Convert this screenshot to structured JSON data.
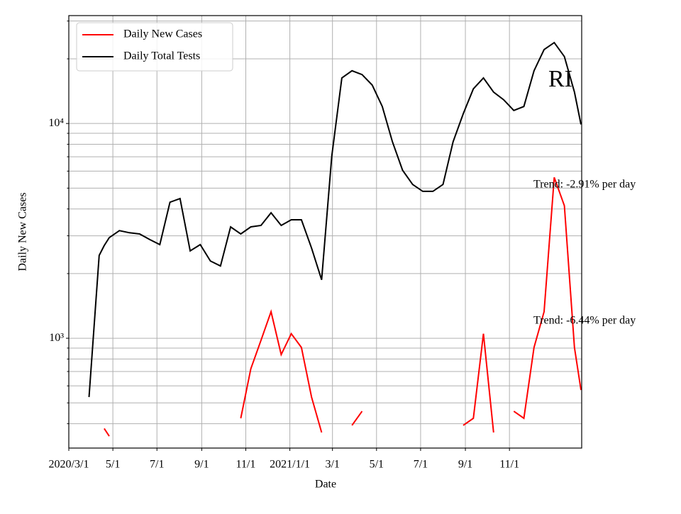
{
  "chart_data": {
    "type": "line",
    "title": "RI",
    "xlabel": "Date",
    "ylabel": "Daily New Cases",
    "yscale": "log",
    "grid": true,
    "legend": "upper left",
    "x": [
      "2020-03-01",
      "2020-03-15",
      "2020-03-29",
      "2020-04-12",
      "2020-04-19",
      "2020-04-26",
      "2020-05-10",
      "2020-05-24",
      "2020-06-07",
      "2020-06-21",
      "2020-07-05",
      "2020-07-19",
      "2020-08-02",
      "2020-08-16",
      "2020-08-30",
      "2020-09-13",
      "2020-09-27",
      "2020-10-11",
      "2020-10-25",
      "2020-11-08",
      "2020-11-22",
      "2020-12-06",
      "2020-12-20",
      "2021-01-03",
      "2021-01-17",
      "2021-01-31",
      "2021-02-14",
      "2021-02-28",
      "2021-03-14",
      "2021-03-28",
      "2021-04-11",
      "2021-04-25",
      "2021-05-09",
      "2021-05-23",
      "2021-06-06",
      "2021-06-20",
      "2021-07-04",
      "2021-07-18",
      "2021-08-01",
      "2021-08-15",
      "2021-08-29",
      "2021-09-12",
      "2021-09-26",
      "2021-10-10",
      "2021-10-24",
      "2021-11-07",
      "2021-11-21",
      "2021-12-05",
      "2021-12-19",
      "2022-01-02",
      "2022-01-16",
      "2022-01-30",
      "2022-02-08"
    ],
    "series": [
      {
        "name": "Daily New Cases",
        "color": "#ff0000",
        "values": [
          null,
          null,
          null,
          null,
          380,
          350,
          null,
          null,
          null,
          null,
          null,
          null,
          null,
          null,
          null,
          null,
          null,
          null,
          424,
          721,
          977,
          1330,
          839,
          1050,
          906,
          532,
          364,
          null,
          null,
          393,
          457,
          null,
          null,
          null,
          null,
          null,
          null,
          null,
          null,
          null,
          393,
          424,
          1050,
          364,
          null,
          457,
          424,
          906,
          1330,
          5610,
          4140,
          906,
          574
        ]
      },
      {
        "name": "Daily Total Tests",
        "color": "#000000",
        "values": [
          null,
          null,
          532,
          2430,
          2700,
          2940,
          3170,
          3100,
          3060,
          2880,
          2730,
          4300,
          4470,
          2550,
          2730,
          2290,
          2170,
          3300,
          3060,
          3300,
          3350,
          3840,
          3350,
          3560,
          3560,
          2630,
          1870,
          7050,
          16300,
          17600,
          16900,
          15100,
          12000,
          8220,
          6060,
          5200,
          4830,
          4830,
          5200,
          8220,
          11100,
          14500,
          16300,
          14000,
          12900,
          11500,
          12000,
          17600,
          22100,
          23800,
          20500,
          14000,
          9900
        ]
      }
    ],
    "xlim": [
      "2020-03-01",
      "2022-02-09"
    ],
    "xticks": [
      {
        "value": "2020-03-01",
        "label": "2020/3/1"
      },
      {
        "value": "2020-05-01",
        "label": "5/1"
      },
      {
        "value": "2020-07-01",
        "label": "7/1"
      },
      {
        "value": "2020-09-01",
        "label": "9/1"
      },
      {
        "value": "2020-11-01",
        "label": "11/1"
      },
      {
        "value": "2021-01-01",
        "label": "2021/1/1"
      },
      {
        "value": "2021-03-01",
        "label": "3/1"
      },
      {
        "value": "2021-05-01",
        "label": "5/1"
      },
      {
        "value": "2021-07-01",
        "label": "7/1"
      },
      {
        "value": "2021-09-01",
        "label": "9/1"
      },
      {
        "value": "2021-11-01",
        "label": "11/1"
      }
    ],
    "ylim": [
      308,
      31800
    ],
    "yticks": [
      {
        "value": 1000,
        "label": "10³"
      },
      {
        "value": 10000,
        "label": "10⁴"
      }
    ],
    "yminorticks": [
      400,
      500,
      600,
      700,
      800,
      900,
      2000,
      3000,
      4000,
      5000,
      6000,
      7000,
      8000,
      9000,
      20000,
      30000
    ],
    "annotations": [
      "Trend: -2.91% per day",
      "Trend: -6.44% per day"
    ]
  }
}
